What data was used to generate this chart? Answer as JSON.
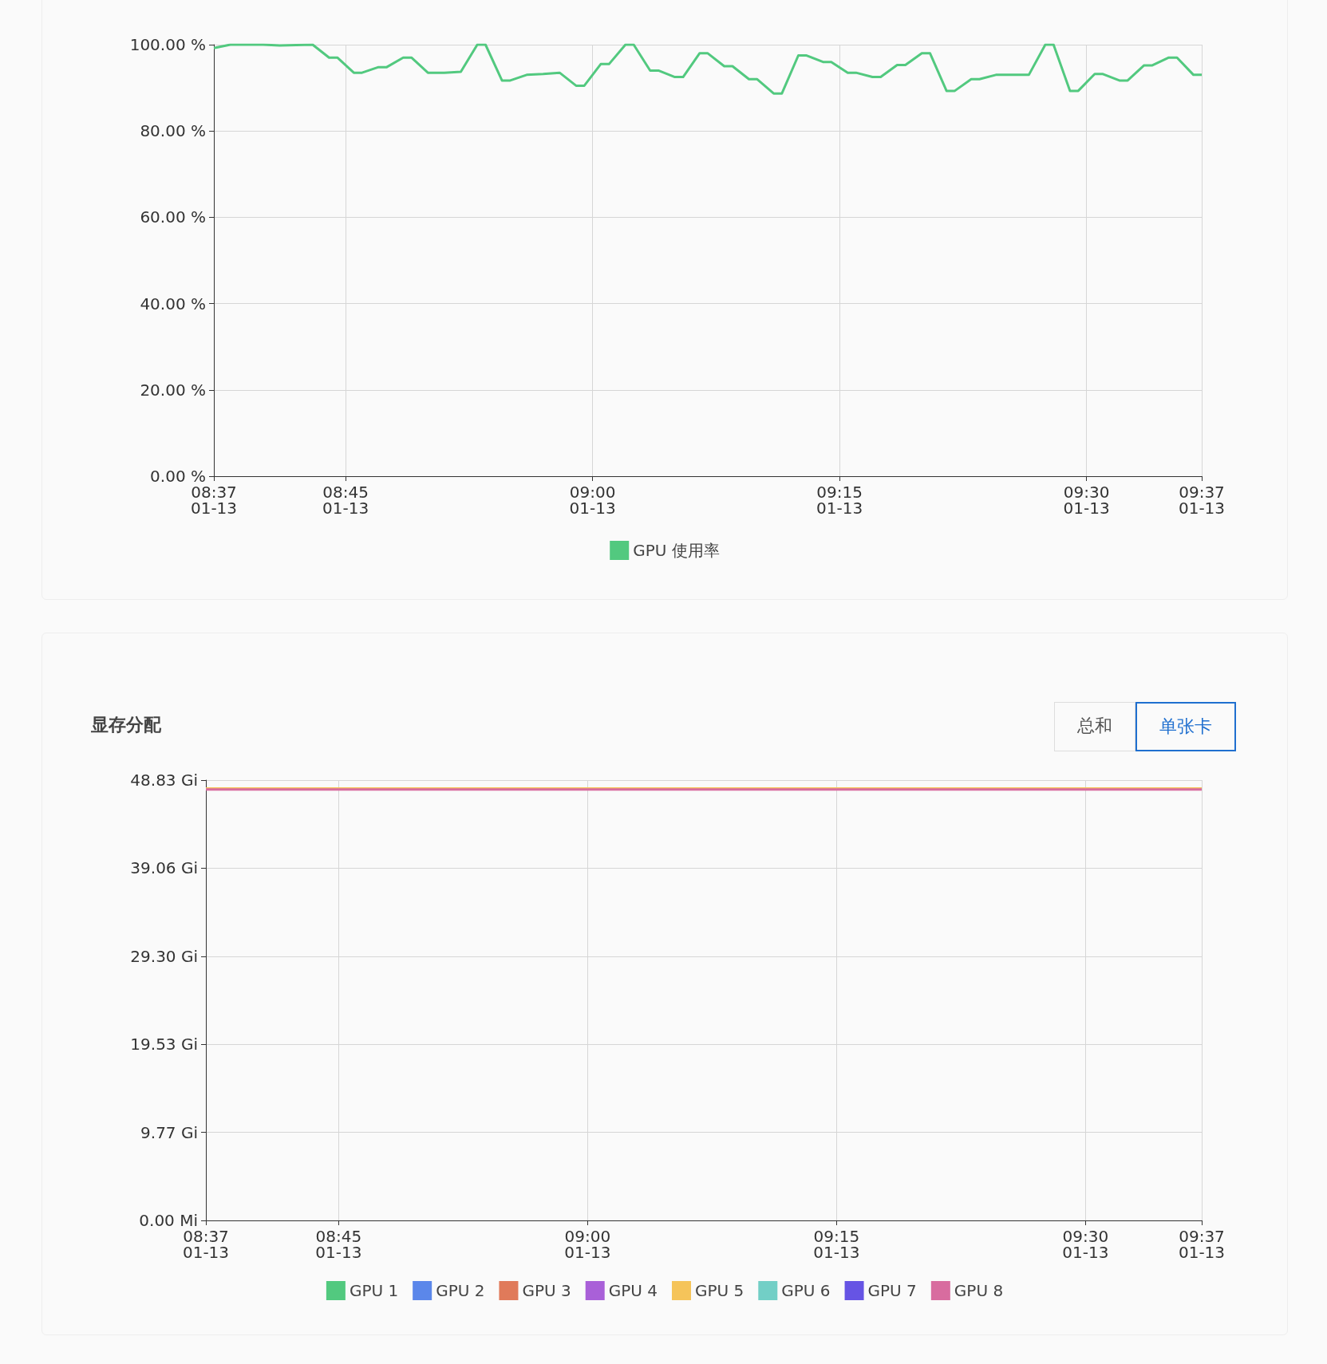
{
  "chart_data": [
    {
      "type": "line",
      "legend": "bottom",
      "grid": true,
      "marker": "none",
      "line_style": "solid",
      "xlim": [
        "--01-13T08:37",
        "--01-13T09:37"
      ],
      "xticks": [
        {
          "value": "--01-13T08:37",
          "label": "08:37\n01-13"
        },
        {
          "value": "--01-13T08:45",
          "label": "08:45\n01-13"
        },
        {
          "value": "--01-13T09:00",
          "label": "09:00\n01-13"
        },
        {
          "value": "--01-13T09:15",
          "label": "09:15\n01-13"
        },
        {
          "value": "--01-13T09:30",
          "label": "09:30\n01-13"
        },
        {
          "value": "--01-13T09:37",
          "label": "09:37\n01-13"
        }
      ],
      "ylim": [
        0,
        100
      ],
      "yticks": [
        {
          "value": 0,
          "label": "0.00 %"
        },
        {
          "value": 20,
          "label": "20.00 %"
        },
        {
          "value": 40,
          "label": "40.00 %"
        },
        {
          "value": 60,
          "label": "60.00 %"
        },
        {
          "value": 80,
          "label": "80.00 %"
        },
        {
          "value": 100,
          "label": "100.00 %"
        }
      ],
      "x": [
        "--01-13T08:37",
        "--01-13T08:38",
        "--01-13T08:40",
        "--01-13T08:41",
        "--01-13T08:43",
        "--01-13T08:44",
        "--01-13T08:44:30",
        "--01-13T08:45:30",
        "--01-13T08:46",
        "--01-13T08:47",
        "--01-13T08:47:30",
        "--01-13T08:48:30",
        "--01-13T08:49",
        "--01-13T08:50",
        "--01-13T08:51",
        "--01-13T08:52",
        "--01-13T08:53",
        "--01-13T08:53:30",
        "--01-13T08:54:30",
        "--01-13T08:55",
        "--01-13T08:56",
        "--01-13T08:57",
        "--01-13T08:58",
        "--01-13T08:59",
        "--01-13T08:59:30",
        "--01-13T09:00:30",
        "--01-13T09:01",
        "--01-13T09:02",
        "--01-13T09:02:30",
        "--01-13T09:03:30",
        "--01-13T09:04",
        "--01-13T09:05",
        "--01-13T09:05:30",
        "--01-13T09:06:30",
        "--01-13T09:07",
        "--01-13T09:08",
        "--01-13T09:08:30",
        "--01-13T09:09:30",
        "--01-13T09:10",
        "--01-13T09:11",
        "--01-13T09:11:30",
        "--01-13T09:12:30",
        "--01-13T09:13",
        "--01-13T09:14",
        "--01-13T09:14:30",
        "--01-13T09:15:30",
        "--01-13T09:16",
        "--01-13T09:17",
        "--01-13T09:17:30",
        "--01-13T09:18:30",
        "--01-13T09:19",
        "--01-13T09:20",
        "--01-13T09:20:30",
        "--01-13T09:21:30",
        "--01-13T09:22",
        "--01-13T09:23",
        "--01-13T09:23:30",
        "--01-13T09:24:30",
        "--01-13T09:26:30",
        "--01-13T09:27:30",
        "--01-13T09:28",
        "--01-13T09:29",
        "--01-13T09:29:30",
        "--01-13T09:30:30",
        "--01-13T09:31",
        "--01-13T09:32",
        "--01-13T09:32:30",
        "--01-13T09:33:30",
        "--01-13T09:34",
        "--01-13T09:35",
        "--01-13T09:35:30",
        "--01-13T09:36:30",
        "--01-13T09:37"
      ],
      "series": [
        {
          "name": "GPU 使用率",
          "color": "#52c97f",
          "values": [
            99.2,
            100,
            100,
            99.8,
            100,
            97,
            97,
            93.5,
            93.5,
            94.8,
            94.8,
            97,
            97,
            93.5,
            93.5,
            93.7,
            100,
            100,
            91.7,
            91.7,
            93,
            93.2,
            93.5,
            90.5,
            90.5,
            95.5,
            95.5,
            100,
            100,
            94,
            94,
            92.5,
            92.5,
            98,
            98,
            95,
            95,
            92,
            92,
            88.7,
            88.7,
            97.5,
            97.5,
            96,
            96,
            93.5,
            93.5,
            92.5,
            92.5,
            95.3,
            95.3,
            98,
            98,
            89.3,
            89.3,
            92,
            92,
            93,
            93,
            100,
            100,
            89.3,
            89.3,
            93.2,
            93.2,
            91.7,
            91.7,
            95.2,
            95.2,
            97,
            97,
            93,
            93
          ]
        }
      ]
    },
    {
      "type": "line",
      "title": "显存分配",
      "annotations": [
        "总和",
        "单张卡"
      ],
      "legend": "bottom",
      "grid": true,
      "marker": "none",
      "line_style": "solid",
      "xlim": [
        "--01-13T08:37",
        "--01-13T09:37"
      ],
      "xticks": [
        {
          "value": "--01-13T08:37",
          "label": "08:37\n01-13"
        },
        {
          "value": "--01-13T08:45",
          "label": "08:45\n01-13"
        },
        {
          "value": "--01-13T09:00",
          "label": "09:00\n01-13"
        },
        {
          "value": "--01-13T09:15",
          "label": "09:15\n01-13"
        },
        {
          "value": "--01-13T09:30",
          "label": "09:30\n01-13"
        },
        {
          "value": "--01-13T09:37",
          "label": "09:37\n01-13"
        }
      ],
      "ylim": [
        0,
        48.83
      ],
      "yticks": [
        {
          "value": 0,
          "label": "0.00 Mi"
        },
        {
          "value": 9.77,
          "label": "9.77 Gi"
        },
        {
          "value": 19.53,
          "label": "19.53 Gi"
        },
        {
          "value": 29.3,
          "label": "29.30 Gi"
        },
        {
          "value": 39.06,
          "label": "39.06 Gi"
        },
        {
          "value": 48.83,
          "label": "48.83 Gi"
        }
      ],
      "x": [
        "--01-13T08:37",
        "--01-13T09:37"
      ],
      "series": [
        {
          "name": "GPU 1",
          "color": "#52c97f",
          "values": [
            null,
            null
          ]
        },
        {
          "name": "GPU 2",
          "color": "#5b87ea",
          "values": [
            null,
            null
          ]
        },
        {
          "name": "GPU 3",
          "color": "#e07a5a",
          "values": [
            null,
            null
          ]
        },
        {
          "name": "GPU 4",
          "color": "#a960d8",
          "values": [
            null,
            null
          ]
        },
        {
          "name": "GPU 5",
          "color": "#f5c45a",
          "values": [
            47.9,
            47.9
          ]
        },
        {
          "name": "GPU 6",
          "color": "#72cfc6",
          "values": [
            null,
            null
          ]
        },
        {
          "name": "GPU 7",
          "color": "#6654e4",
          "values": [
            null,
            null
          ]
        },
        {
          "name": "GPU 8",
          "color": "#d86c9f",
          "values": [
            47.8,
            47.8
          ]
        }
      ]
    }
  ]
}
